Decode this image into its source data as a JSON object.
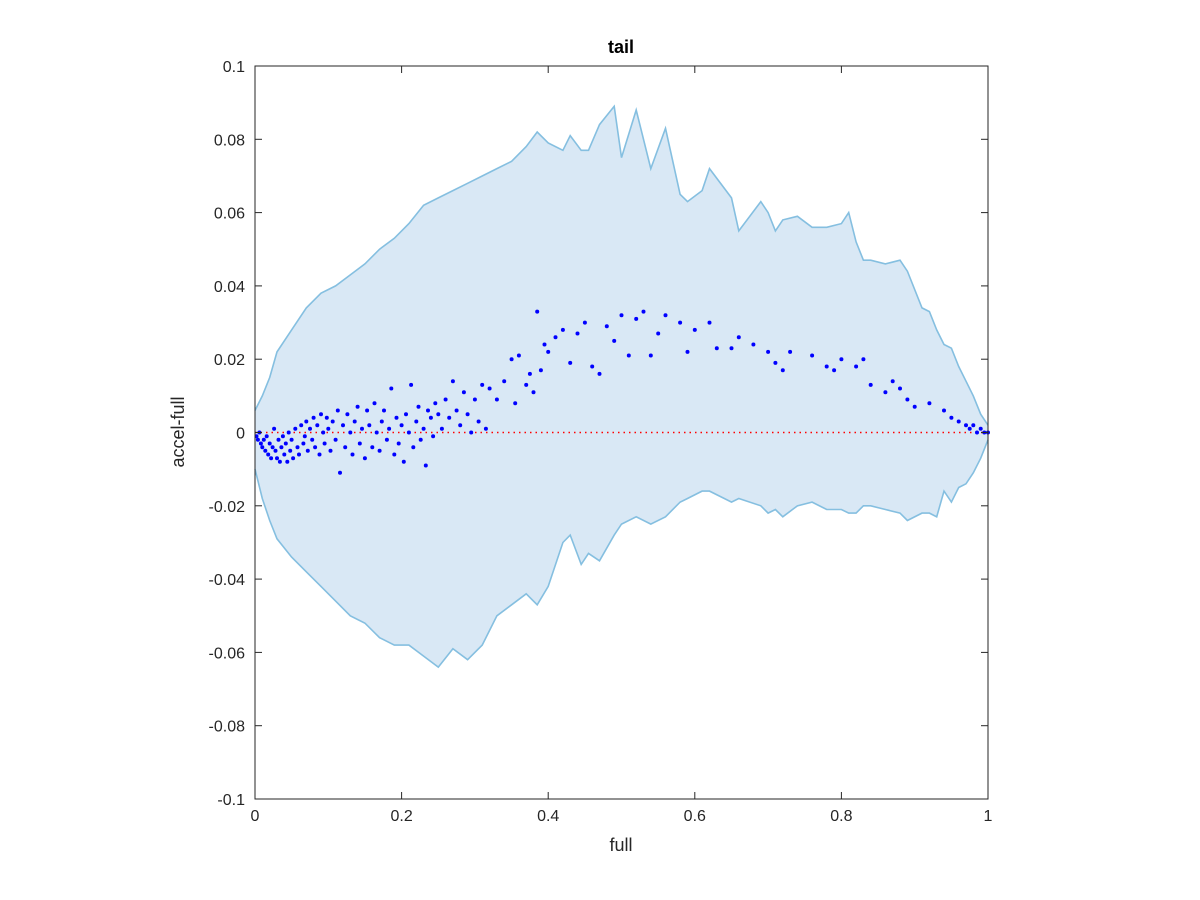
{
  "chart_data": {
    "type": "scatter",
    "title": "tail",
    "xlabel": "full",
    "ylabel": "accel-full",
    "xlim": [
      0,
      1
    ],
    "ylim": [
      -0.1,
      0.1
    ],
    "xticks": [
      0,
      0.2,
      0.4,
      0.6,
      0.8,
      1
    ],
    "xtick_labels": [
      "0",
      "0.2",
      "0.4",
      "0.6",
      "0.8",
      "1"
    ],
    "yticks": [
      -0.1,
      -0.08,
      -0.06,
      -0.04,
      -0.02,
      0,
      0.02,
      0.04,
      0.06,
      0.08,
      0.1
    ],
    "ytick_labels": [
      "-0.1",
      "-0.08",
      "-0.06",
      "-0.04",
      "-0.02",
      "0",
      "0.02",
      "0.04",
      "0.06",
      "0.08",
      "0.1"
    ],
    "grid": false,
    "colors": {
      "band_fill": "#d9e8f5",
      "band_edge": "#85bfe0",
      "points": "#0000ff",
      "zero_line": "#ff0000",
      "axes": "#262626"
    },
    "reference_line": {
      "y": 0,
      "style": "dotted"
    },
    "band": {
      "x": [
        0,
        0.01,
        0.02,
        0.03,
        0.05,
        0.07,
        0.09,
        0.11,
        0.13,
        0.15,
        0.17,
        0.19,
        0.21,
        0.23,
        0.25,
        0.27,
        0.29,
        0.31,
        0.33,
        0.35,
        0.37,
        0.385,
        0.4,
        0.42,
        0.43,
        0.445,
        0.455,
        0.47,
        0.49,
        0.5,
        0.52,
        0.54,
        0.56,
        0.58,
        0.59,
        0.61,
        0.62,
        0.65,
        0.66,
        0.69,
        0.7,
        0.71,
        0.72,
        0.74,
        0.76,
        0.78,
        0.8,
        0.81,
        0.82,
        0.83,
        0.84,
        0.86,
        0.88,
        0.89,
        0.91,
        0.92,
        0.93,
        0.94,
        0.95,
        0.96,
        0.97,
        0.98,
        0.99,
        1.0
      ],
      "upper": [
        0.006,
        0.01,
        0.015,
        0.022,
        0.028,
        0.034,
        0.038,
        0.04,
        0.043,
        0.046,
        0.05,
        0.053,
        0.057,
        0.062,
        0.064,
        0.066,
        0.068,
        0.07,
        0.072,
        0.074,
        0.078,
        0.082,
        0.079,
        0.077,
        0.081,
        0.077,
        0.077,
        0.084,
        0.089,
        0.075,
        0.088,
        0.072,
        0.083,
        0.065,
        0.063,
        0.066,
        0.072,
        0.064,
        0.055,
        0.063,
        0.06,
        0.055,
        0.058,
        0.059,
        0.056,
        0.056,
        0.057,
        0.06,
        0.052,
        0.047,
        0.047,
        0.046,
        0.047,
        0.044,
        0.034,
        0.033,
        0.028,
        0.024,
        0.023,
        0.018,
        0.014,
        0.01,
        0.005,
        0.002
      ],
      "lower": [
        -0.01,
        -0.018,
        -0.024,
        -0.029,
        -0.034,
        -0.038,
        -0.042,
        -0.046,
        -0.05,
        -0.052,
        -0.056,
        -0.058,
        -0.058,
        -0.061,
        -0.064,
        -0.059,
        -0.062,
        -0.058,
        -0.05,
        -0.047,
        -0.044,
        -0.047,
        -0.042,
        -0.03,
        -0.028,
        -0.036,
        -0.033,
        -0.035,
        -0.028,
        -0.025,
        -0.023,
        -0.025,
        -0.023,
        -0.019,
        -0.018,
        -0.016,
        -0.016,
        -0.019,
        -0.018,
        -0.02,
        -0.022,
        -0.021,
        -0.023,
        -0.02,
        -0.019,
        -0.021,
        -0.021,
        -0.022,
        -0.022,
        -0.02,
        -0.02,
        -0.021,
        -0.022,
        -0.024,
        -0.022,
        -0.022,
        -0.023,
        -0.016,
        -0.019,
        -0.015,
        -0.014,
        -0.011,
        -0.007,
        -0.002
      ]
    },
    "series": [
      {
        "x": [
          0.002,
          0.004,
          0.006,
          0.008,
          0.01,
          0.012,
          0.014,
          0.016,
          0.018,
          0.02,
          0.022,
          0.024,
          0.026,
          0.028,
          0.03,
          0.032,
          0.034,
          0.036,
          0.038,
          0.04,
          0.042,
          0.044,
          0.046,
          0.048,
          0.05,
          0.052,
          0.055,
          0.058,
          0.06,
          0.063,
          0.066,
          0.068,
          0.07,
          0.072,
          0.075,
          0.078,
          0.08,
          0.082,
          0.085,
          0.088,
          0.09,
          0.093,
          0.095,
          0.098,
          0.1,
          0.103,
          0.106,
          0.11,
          0.113,
          0.116,
          0.12,
          0.123,
          0.126,
          0.13,
          0.133,
          0.136,
          0.14,
          0.143,
          0.146,
          0.15,
          0.153,
          0.156,
          0.16,
          0.163,
          0.166,
          0.17,
          0.173,
          0.176,
          0.18,
          0.183,
          0.186,
          0.19,
          0.193,
          0.196,
          0.2,
          0.203,
          0.206,
          0.21,
          0.213,
          0.216,
          0.22,
          0.223,
          0.226,
          0.23,
          0.233,
          0.236,
          0.24,
          0.243,
          0.246,
          0.25,
          0.255,
          0.26,
          0.265,
          0.27,
          0.275,
          0.28,
          0.285,
          0.29,
          0.295,
          0.3,
          0.305,
          0.31,
          0.315,
          0.32,
          0.33,
          0.34,
          0.35,
          0.355,
          0.36,
          0.37,
          0.375,
          0.38,
          0.385,
          0.39,
          0.395,
          0.4,
          0.41,
          0.42,
          0.43,
          0.44,
          0.45,
          0.46,
          0.47,
          0.48,
          0.49,
          0.5,
          0.51,
          0.52,
          0.53,
          0.54,
          0.55,
          0.56,
          0.58,
          0.59,
          0.6,
          0.62,
          0.63,
          0.65,
          0.66,
          0.68,
          0.7,
          0.71,
          0.72,
          0.73,
          0.76,
          0.78,
          0.79,
          0.8,
          0.82,
          0.83,
          0.84,
          0.86,
          0.87,
          0.88,
          0.89,
          0.9,
          0.92,
          0.94,
          0.95,
          0.96,
          0.97,
          0.975,
          0.98,
          0.985,
          0.99,
          0.995,
          1.0
        ],
        "y": [
          -0.001,
          -0.002,
          0.0,
          -0.003,
          -0.004,
          -0.002,
          -0.005,
          -0.001,
          -0.006,
          -0.003,
          -0.007,
          -0.004,
          0.001,
          -0.005,
          -0.007,
          -0.002,
          -0.008,
          -0.004,
          -0.001,
          -0.006,
          -0.003,
          -0.008,
          0.0,
          -0.005,
          -0.002,
          -0.007,
          0.001,
          -0.004,
          -0.006,
          0.002,
          -0.003,
          -0.001,
          0.003,
          -0.005,
          0.001,
          -0.002,
          0.004,
          -0.004,
          0.002,
          -0.006,
          0.005,
          0.0,
          -0.003,
          0.004,
          0.001,
          -0.005,
          0.003,
          -0.002,
          0.006,
          -0.011,
          0.002,
          -0.004,
          0.005,
          0.0,
          -0.006,
          0.003,
          0.007,
          -0.003,
          0.001,
          -0.007,
          0.006,
          0.002,
          -0.004,
          0.008,
          0.0,
          -0.005,
          0.003,
          0.006,
          -0.002,
          0.001,
          0.012,
          -0.006,
          0.004,
          -0.003,
          0.002,
          -0.008,
          0.005,
          0.0,
          0.013,
          -0.004,
          0.003,
          0.007,
          -0.002,
          0.001,
          -0.009,
          0.006,
          0.004,
          -0.001,
          0.008,
          0.005,
          0.001,
          0.009,
          0.004,
          0.014,
          0.006,
          0.002,
          0.011,
          0.005,
          0.0,
          0.009,
          0.003,
          0.013,
          0.001,
          0.012,
          0.009,
          0.014,
          0.02,
          0.008,
          0.021,
          0.013,
          0.016,
          0.011,
          0.033,
          0.017,
          0.024,
          0.022,
          0.026,
          0.028,
          0.019,
          0.027,
          0.03,
          0.018,
          0.016,
          0.029,
          0.025,
          0.032,
          0.021,
          0.031,
          0.033,
          0.021,
          0.027,
          0.032,
          0.03,
          0.022,
          0.028,
          0.03,
          0.023,
          0.023,
          0.026,
          0.024,
          0.022,
          0.019,
          0.017,
          0.022,
          0.021,
          0.018,
          0.017,
          0.02,
          0.018,
          0.02,
          0.013,
          0.011,
          0.014,
          0.012,
          0.009,
          0.007,
          0.008,
          0.006,
          0.004,
          0.003,
          0.002,
          0.001,
          0.002,
          0.0,
          0.001,
          0.0,
          0.0
        ]
      }
    ]
  }
}
